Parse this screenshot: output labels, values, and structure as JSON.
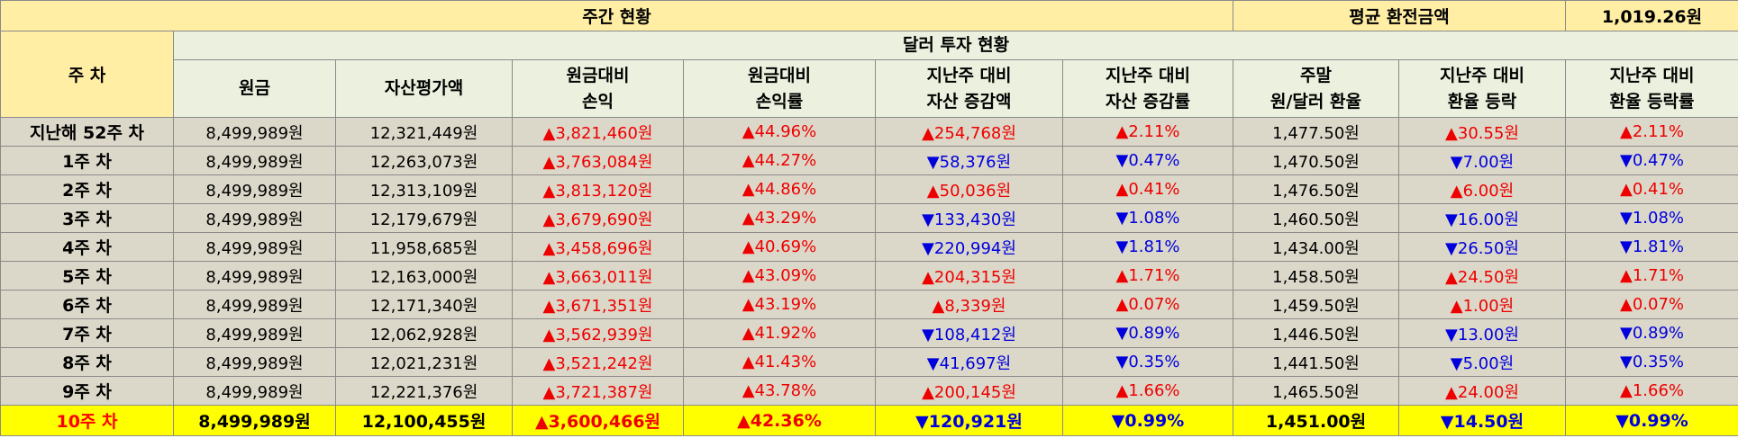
{
  "header": {
    "weekly_status": "주간 현황",
    "avg_exchange_label": "평균 환전금액",
    "avg_exchange_value": "1,019.26원",
    "week_label": "주 차",
    "dollar_status": "달러 투자 현황",
    "columns": [
      {
        "line1": "원금",
        "line2": ""
      },
      {
        "line1": "자산평가액",
        "line2": ""
      },
      {
        "line1": "원금대비",
        "line2": "손익"
      },
      {
        "line1": "원금대비",
        "line2": "손익률"
      },
      {
        "line1": "지난주 대비",
        "line2": "자산 증감액"
      },
      {
        "line1": "지난주 대비",
        "line2": "자산 증감률"
      },
      {
        "line1": "주말",
        "line2": "원/달러 환율"
      },
      {
        "line1": "지난주 대비",
        "line2": "환율 등락"
      },
      {
        "line1": "지난주 대비",
        "line2": "환율 등락률"
      }
    ]
  },
  "colors": {
    "up": "#ee0000",
    "down": "#0000dd",
    "header_bg": "#ffeea4",
    "current_row_bg": "#ffff00"
  },
  "rows": [
    {
      "label": "지난해 52주 차",
      "principal": "8,499,989원",
      "asset": "12,321,449원",
      "pl": "▲3,821,460원",
      "pl_dir": "up",
      "pl_rate": "▲44.96%",
      "pl_rate_dir": "up",
      "asset_change": "▲254,768원",
      "asset_change_dir": "up",
      "asset_rate": "▲2.11%",
      "asset_rate_dir": "up",
      "fx": "1,477.50원",
      "fx_change": "▲30.55원",
      "fx_change_dir": "up",
      "fx_rate": "▲2.11%",
      "fx_rate_dir": "up"
    },
    {
      "label": "1주 차",
      "principal": "8,499,989원",
      "asset": "12,263,073원",
      "pl": "▲3,763,084원",
      "pl_dir": "up",
      "pl_rate": "▲44.27%",
      "pl_rate_dir": "up",
      "asset_change": "▼58,376원",
      "asset_change_dir": "down",
      "asset_rate": "▼0.47%",
      "asset_rate_dir": "down",
      "fx": "1,470.50원",
      "fx_change": "▼7.00원",
      "fx_change_dir": "down",
      "fx_rate": "▼0.47%",
      "fx_rate_dir": "down"
    },
    {
      "label": "2주 차",
      "principal": "8,499,989원",
      "asset": "12,313,109원",
      "pl": "▲3,813,120원",
      "pl_dir": "up",
      "pl_rate": "▲44.86%",
      "pl_rate_dir": "up",
      "asset_change": "▲50,036원",
      "asset_change_dir": "up",
      "asset_rate": "▲0.41%",
      "asset_rate_dir": "up",
      "fx": "1,476.50원",
      "fx_change": "▲6.00원",
      "fx_change_dir": "up",
      "fx_rate": "▲0.41%",
      "fx_rate_dir": "up"
    },
    {
      "label": "3주 차",
      "principal": "8,499,989원",
      "asset": "12,179,679원",
      "pl": "▲3,679,690원",
      "pl_dir": "up",
      "pl_rate": "▲43.29%",
      "pl_rate_dir": "up",
      "asset_change": "▼133,430원",
      "asset_change_dir": "down",
      "asset_rate": "▼1.08%",
      "asset_rate_dir": "down",
      "fx": "1,460.50원",
      "fx_change": "▼16.00원",
      "fx_change_dir": "down",
      "fx_rate": "▼1.08%",
      "fx_rate_dir": "down"
    },
    {
      "label": "4주 차",
      "principal": "8,499,989원",
      "asset": "11,958,685원",
      "pl": "▲3,458,696원",
      "pl_dir": "up",
      "pl_rate": "▲40.69%",
      "pl_rate_dir": "up",
      "asset_change": "▼220,994원",
      "asset_change_dir": "down",
      "asset_rate": "▼1.81%",
      "asset_rate_dir": "down",
      "fx": "1,434.00원",
      "fx_change": "▼26.50원",
      "fx_change_dir": "down",
      "fx_rate": "▼1.81%",
      "fx_rate_dir": "down"
    },
    {
      "label": "5주 차",
      "principal": "8,499,989원",
      "asset": "12,163,000원",
      "pl": "▲3,663,011원",
      "pl_dir": "up",
      "pl_rate": "▲43.09%",
      "pl_rate_dir": "up",
      "asset_change": "▲204,315원",
      "asset_change_dir": "up",
      "asset_rate": "▲1.71%",
      "asset_rate_dir": "up",
      "fx": "1,458.50원",
      "fx_change": "▲24.50원",
      "fx_change_dir": "up",
      "fx_rate": "▲1.71%",
      "fx_rate_dir": "up"
    },
    {
      "label": "6주 차",
      "principal": "8,499,989원",
      "asset": "12,171,340원",
      "pl": "▲3,671,351원",
      "pl_dir": "up",
      "pl_rate": "▲43.19%",
      "pl_rate_dir": "up",
      "asset_change": "▲8,339원",
      "asset_change_dir": "up",
      "asset_rate": "▲0.07%",
      "asset_rate_dir": "up",
      "fx": "1,459.50원",
      "fx_change": "▲1.00원",
      "fx_change_dir": "up",
      "fx_rate": "▲0.07%",
      "fx_rate_dir": "up"
    },
    {
      "label": "7주 차",
      "principal": "8,499,989원",
      "asset": "12,062,928원",
      "pl": "▲3,562,939원",
      "pl_dir": "up",
      "pl_rate": "▲41.92%",
      "pl_rate_dir": "up",
      "asset_change": "▼108,412원",
      "asset_change_dir": "down",
      "asset_rate": "▼0.89%",
      "asset_rate_dir": "down",
      "fx": "1,446.50원",
      "fx_change": "▼13.00원",
      "fx_change_dir": "down",
      "fx_rate": "▼0.89%",
      "fx_rate_dir": "down"
    },
    {
      "label": "8주 차",
      "principal": "8,499,989원",
      "asset": "12,021,231원",
      "pl": "▲3,521,242원",
      "pl_dir": "up",
      "pl_rate": "▲41.43%",
      "pl_rate_dir": "up",
      "asset_change": "▼41,697원",
      "asset_change_dir": "down",
      "asset_rate": "▼0.35%",
      "asset_rate_dir": "down",
      "fx": "1,441.50원",
      "fx_change": "▼5.00원",
      "fx_change_dir": "down",
      "fx_rate": "▼0.35%",
      "fx_rate_dir": "down"
    },
    {
      "label": "9주 차",
      "principal": "8,499,989원",
      "asset": "12,221,376원",
      "pl": "▲3,721,387원",
      "pl_dir": "up",
      "pl_rate": "▲43.78%",
      "pl_rate_dir": "up",
      "asset_change": "▲200,145원",
      "asset_change_dir": "up",
      "asset_rate": "▲1.66%",
      "asset_rate_dir": "up",
      "fx": "1,465.50원",
      "fx_change": "▲24.00원",
      "fx_change_dir": "up",
      "fx_rate": "▲1.66%",
      "fx_rate_dir": "up"
    },
    {
      "label": "10주 차",
      "principal": "8,499,989원",
      "asset": "12,100,455원",
      "pl": "▲3,600,466원",
      "pl_dir": "up",
      "pl_rate": "▲42.36%",
      "pl_rate_dir": "up",
      "asset_change": "▼120,921원",
      "asset_change_dir": "down",
      "asset_rate": "▼0.99%",
      "asset_rate_dir": "down",
      "fx": "1,451.00원",
      "fx_change": "▼14.50원",
      "fx_change_dir": "down",
      "fx_rate": "▼0.99%",
      "fx_rate_dir": "down",
      "current": true
    }
  ]
}
